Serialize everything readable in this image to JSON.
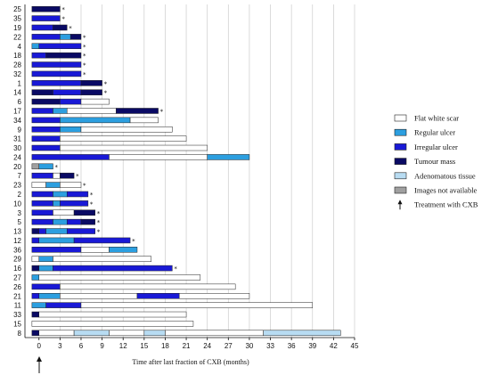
{
  "chart_data": {
    "type": "bar",
    "orientation": "horizontal-stacked-timeline",
    "xlabel": "Time after last fraction of CXB (months)",
    "xlim": [
      -2,
      45
    ],
    "xticks": [
      "0",
      "3",
      "6",
      "9",
      "12",
      "15",
      "18",
      "21",
      "24",
      "27",
      "30",
      "33",
      "36",
      "39",
      "42",
      "45"
    ],
    "grid": "vertical",
    "legend_position": "right",
    "colors": {
      "flat": "#ffffff",
      "regular": "#2c9fe0",
      "irregular": "#1919d6",
      "tumour": "#0a0a64",
      "adenomatous": "#b8dcf2",
      "na": "#a0a0a0",
      "outline": "#222222",
      "grid": "#cccccc"
    },
    "legend": [
      {
        "key": "flat",
        "label": "Flat white scar"
      },
      {
        "key": "regular",
        "label": "Regular ulcer"
      },
      {
        "key": "irregular",
        "label": "Irregular ulcer"
      },
      {
        "key": "tumour",
        "label": "Tumour mass"
      },
      {
        "key": "adenomatous",
        "label": "Adenomatous tissue"
      },
      {
        "key": "na",
        "label": "Images not available"
      },
      {
        "key": "arrow",
        "label": "Treatment with CXB"
      }
    ],
    "patients": [
      {
        "id": "25",
        "star": true,
        "segments": [
          [
            "tumour",
            -1,
            3
          ]
        ]
      },
      {
        "id": "35",
        "star": true,
        "segments": [
          [
            "irregular",
            -1,
            3
          ]
        ]
      },
      {
        "id": "19",
        "star": true,
        "segments": [
          [
            "irregular",
            -1,
            2
          ],
          [
            "tumour",
            2,
            4
          ]
        ]
      },
      {
        "id": "22",
        "star": true,
        "segments": [
          [
            "irregular",
            -1,
            3
          ],
          [
            "regular",
            3,
            4.5
          ],
          [
            "tumour",
            4.5,
            6
          ]
        ]
      },
      {
        "id": "4",
        "star": true,
        "segments": [
          [
            "regular",
            -1,
            0
          ],
          [
            "irregular",
            0,
            6
          ]
        ]
      },
      {
        "id": "18",
        "star": true,
        "segments": [
          [
            "irregular",
            -1,
            1
          ],
          [
            "tumour",
            1,
            6
          ]
        ]
      },
      {
        "id": "28",
        "star": true,
        "segments": [
          [
            "irregular",
            -1,
            6
          ]
        ]
      },
      {
        "id": "32",
        "star": true,
        "segments": [
          [
            "irregular",
            -1,
            6
          ]
        ]
      },
      {
        "id": "1",
        "star": true,
        "segments": [
          [
            "irregular",
            -1,
            6
          ],
          [
            "tumour",
            6,
            9
          ]
        ]
      },
      {
        "id": "14",
        "star": true,
        "segments": [
          [
            "tumour",
            -1,
            2
          ],
          [
            "irregular",
            2,
            6
          ],
          [
            "tumour",
            6,
            9
          ]
        ]
      },
      {
        "id": "6",
        "star": false,
        "segments": [
          [
            "tumour",
            -1,
            3
          ],
          [
            "irregular",
            3,
            6
          ],
          [
            "flat",
            6,
            10
          ]
        ]
      },
      {
        "id": "17",
        "star": true,
        "segments": [
          [
            "irregular",
            -1,
            2
          ],
          [
            "regular",
            2,
            4
          ],
          [
            "flat",
            4,
            11
          ],
          [
            "tumour",
            11,
            17
          ]
        ]
      },
      {
        "id": "34",
        "star": false,
        "segments": [
          [
            "irregular",
            -1,
            3
          ],
          [
            "regular",
            3,
            13
          ],
          [
            "flat",
            13,
            17
          ]
        ]
      },
      {
        "id": "9",
        "star": false,
        "segments": [
          [
            "irregular",
            -1,
            3
          ],
          [
            "regular",
            3,
            6
          ],
          [
            "flat",
            6,
            19
          ]
        ]
      },
      {
        "id": "31",
        "star": false,
        "segments": [
          [
            "irregular",
            -1,
            3
          ],
          [
            "flat",
            3,
            21
          ]
        ]
      },
      {
        "id": "30",
        "star": false,
        "segments": [
          [
            "irregular",
            -1,
            3
          ],
          [
            "flat",
            3,
            24
          ]
        ]
      },
      {
        "id": "24",
        "star": false,
        "segments": [
          [
            "irregular",
            -1,
            10
          ],
          [
            "flat",
            10,
            24
          ],
          [
            "regular",
            24,
            30
          ]
        ]
      },
      {
        "id": "20",
        "star": true,
        "segments": [
          [
            "na",
            -1,
            0
          ],
          [
            "regular",
            0,
            2
          ]
        ]
      },
      {
        "id": "7",
        "star": true,
        "segments": [
          [
            "irregular",
            -1,
            2
          ],
          [
            "flat",
            2,
            3
          ],
          [
            "tumour",
            3,
            5
          ]
        ]
      },
      {
        "id": "23",
        "star": true,
        "segments": [
          [
            "flat",
            -1,
            1
          ],
          [
            "regular",
            1,
            3
          ],
          [
            "flat",
            3,
            6
          ]
        ]
      },
      {
        "id": "2",
        "star": true,
        "segments": [
          [
            "irregular",
            -1,
            2
          ],
          [
            "regular",
            2,
            4
          ],
          [
            "irregular",
            4,
            7
          ]
        ]
      },
      {
        "id": "10",
        "star": true,
        "segments": [
          [
            "irregular",
            -1,
            2
          ],
          [
            "regular",
            2,
            3
          ],
          [
            "irregular",
            3,
            7
          ]
        ]
      },
      {
        "id": "3",
        "star": true,
        "segments": [
          [
            "irregular",
            -1,
            2
          ],
          [
            "flat",
            2,
            5
          ],
          [
            "tumour",
            5,
            8
          ]
        ]
      },
      {
        "id": "5",
        "star": true,
        "segments": [
          [
            "irregular",
            -1,
            2
          ],
          [
            "regular",
            2,
            4
          ],
          [
            "irregular",
            4,
            6
          ],
          [
            "tumour",
            6,
            8
          ]
        ]
      },
      {
        "id": "13",
        "star": true,
        "segments": [
          [
            "tumour",
            -1,
            0
          ],
          [
            "irregular",
            0,
            1
          ],
          [
            "regular",
            1,
            4
          ],
          [
            "irregular",
            4,
            8
          ]
        ]
      },
      {
        "id": "12",
        "star": true,
        "segments": [
          [
            "irregular",
            -1,
            0
          ],
          [
            "regular",
            0,
            5
          ],
          [
            "irregular",
            5,
            13
          ]
        ]
      },
      {
        "id": "36",
        "star": false,
        "segments": [
          [
            "irregular",
            -1,
            6
          ],
          [
            "flat",
            6,
            10
          ],
          [
            "regular",
            10,
            14
          ]
        ]
      },
      {
        "id": "29",
        "star": false,
        "segments": [
          [
            "flat",
            -1,
            0
          ],
          [
            "regular",
            0,
            2
          ],
          [
            "flat",
            2,
            16
          ]
        ]
      },
      {
        "id": "16",
        "star": true,
        "segments": [
          [
            "tumour",
            -1,
            0
          ],
          [
            "regular",
            0,
            2
          ],
          [
            "irregular",
            2,
            19
          ]
        ]
      },
      {
        "id": "27",
        "star": false,
        "segments": [
          [
            "regular",
            -1,
            0
          ],
          [
            "flat",
            0,
            23
          ]
        ]
      },
      {
        "id": "26",
        "star": false,
        "segments": [
          [
            "irregular",
            -1,
            3
          ],
          [
            "flat",
            3,
            28
          ]
        ]
      },
      {
        "id": "21",
        "star": false,
        "segments": [
          [
            "irregular",
            -1,
            0
          ],
          [
            "regular",
            0,
            3
          ],
          [
            "flat",
            3,
            14
          ],
          [
            "irregular",
            14,
            20
          ],
          [
            "flat",
            20,
            30
          ]
        ]
      },
      {
        "id": "11",
        "star": false,
        "segments": [
          [
            "regular",
            -1,
            1
          ],
          [
            "irregular",
            1,
            6
          ],
          [
            "flat",
            6,
            39
          ]
        ]
      },
      {
        "id": "33",
        "star": false,
        "segments": [
          [
            "tumour",
            -1,
            0
          ],
          [
            "flat",
            0,
            21
          ]
        ]
      },
      {
        "id": "15",
        "star": false,
        "segments": [
          [
            "flat",
            -1,
            22
          ]
        ]
      },
      {
        "id": "8",
        "star": false,
        "segments": [
          [
            "tumour",
            -1,
            0
          ],
          [
            "flat",
            0,
            5
          ],
          [
            "adenomatous",
            5,
            10
          ],
          [
            "flat",
            10,
            15
          ],
          [
            "adenomatous",
            15,
            18
          ],
          [
            "flat",
            18,
            32
          ],
          [
            "adenomatous",
            32,
            43
          ]
        ]
      }
    ]
  }
}
